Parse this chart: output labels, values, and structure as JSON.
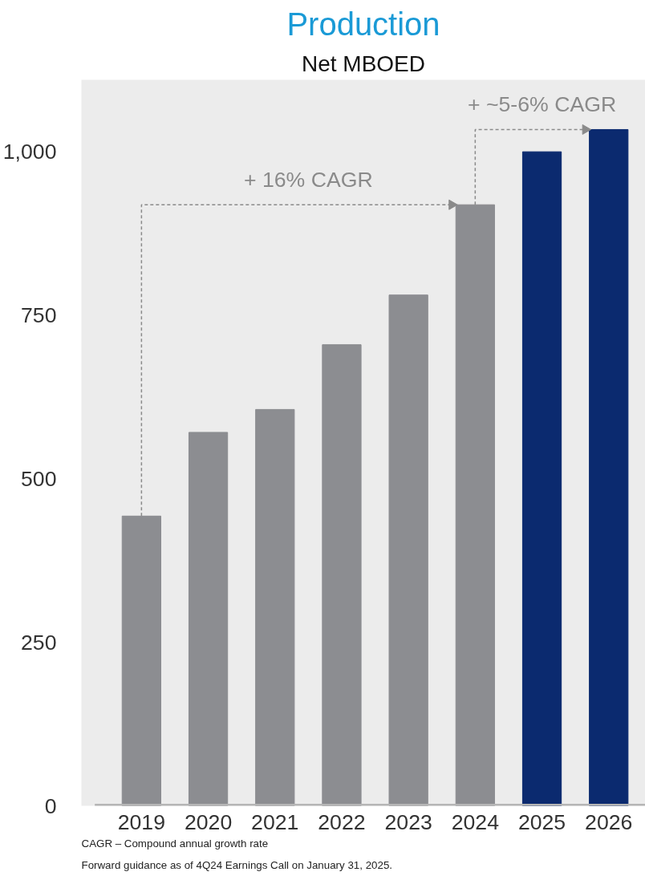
{
  "chart_data": {
    "type": "bar",
    "title": "Production",
    "subtitle": "Net MBOED",
    "categories": [
      "2019",
      "2020",
      "2021",
      "2022",
      "2023",
      "2024",
      "2025",
      "2026"
    ],
    "values": [
      443,
      571,
      606,
      705,
      781,
      919,
      1000,
      1034
    ],
    "colors": [
      "#8c8d91",
      "#8c8d91",
      "#8c8d91",
      "#8c8d91",
      "#8c8d91",
      "#8c8d91",
      "#0b2a6f",
      "#0b2a6f"
    ],
    "ylim": [
      0,
      1110
    ],
    "yticks": [
      0,
      250,
      500,
      750,
      {
        "value": 1000,
        "label": "1,000"
      }
    ],
    "grid": false,
    "annotations": [
      "+ 16% CAGR",
      "+ ~5-6% CAGR",
      "CAGR – Compound annual growth rate",
      "Forward guidance as of 4Q24 Earnings Call on January 31, 2025."
    ]
  }
}
